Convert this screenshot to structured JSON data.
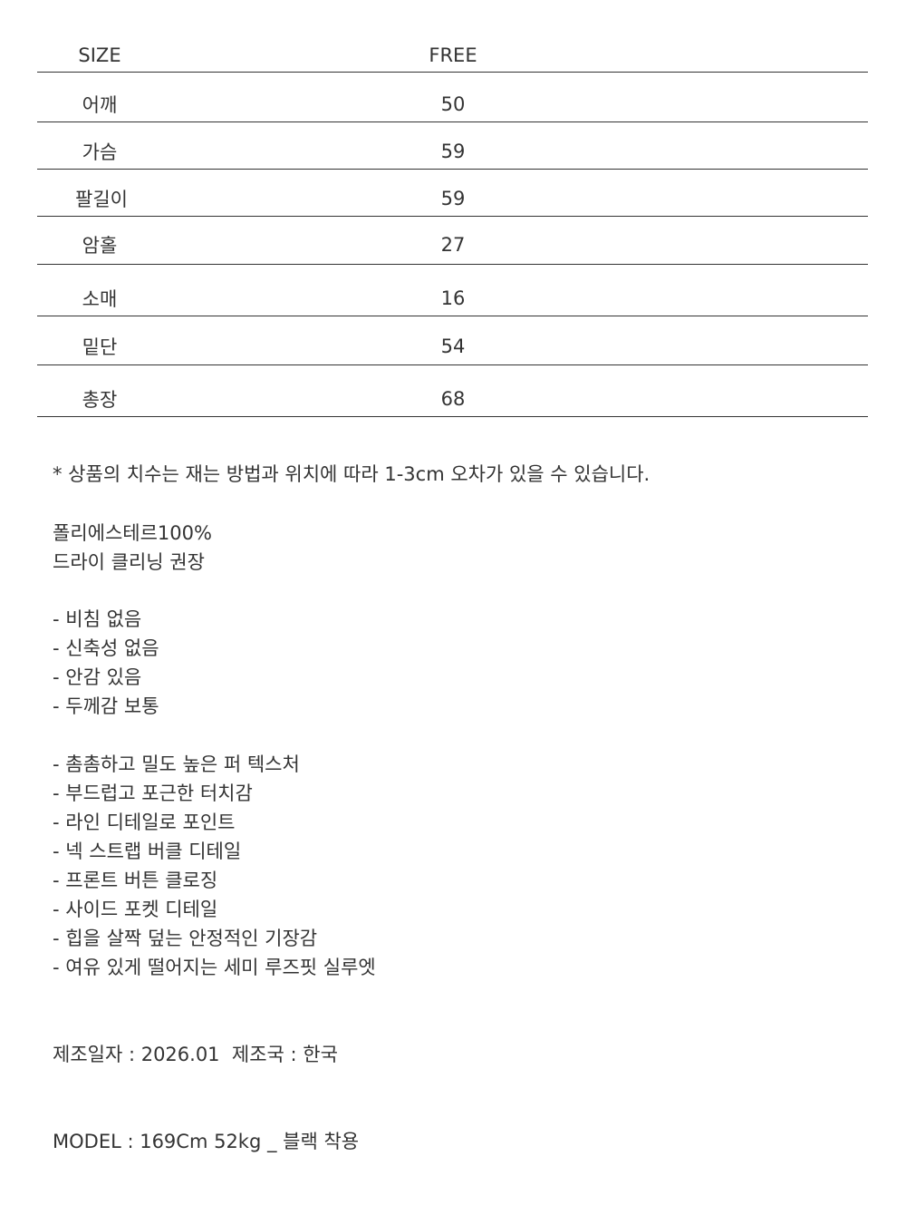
{
  "size_table": {
    "header": {
      "label": "SIZE",
      "value": "FREE"
    },
    "rows": [
      {
        "label": "어깨",
        "value": "50"
      },
      {
        "label": "가슴",
        "value": "59"
      },
      {
        "label": "팔길이",
        "value": "59"
      },
      {
        "label": "암홀",
        "value": "27"
      },
      {
        "label": "소매",
        "value": "16"
      },
      {
        "label": "밑단",
        "value": "54"
      },
      {
        "label": "총장",
        "value": "68"
      }
    ]
  },
  "note": "* 상품의 치수는 재는 방법과 위치에 따라 1-3cm 오차가 있을 수 있습니다.",
  "material": [
    "폴리에스테르100%",
    "드라이 클리닝 권장"
  ],
  "properties": [
    "- 비침 없음",
    "- 신축성 없음",
    "- 안감 있음",
    "- 두께감 보통"
  ],
  "features": [
    "- 촘촘하고 밀도 높은 퍼 텍스처",
    "- 부드럽고 포근한 터치감",
    "- 라인 디테일로 포인트",
    "- 넥 스트랩 버클 디테일",
    "- 프론트 버튼 클로징",
    "- 사이드 포켓 디테일",
    "- 힙을 살짝 덮는 안정적인 기장감",
    "- 여유 있게 떨어지는 세미 루즈핏 실루엣"
  ],
  "manufacture": "제조일자 : 2026.01  제조국 : 한국",
  "model": "MODEL : 169Cm 52kg _ 블랙 착용"
}
